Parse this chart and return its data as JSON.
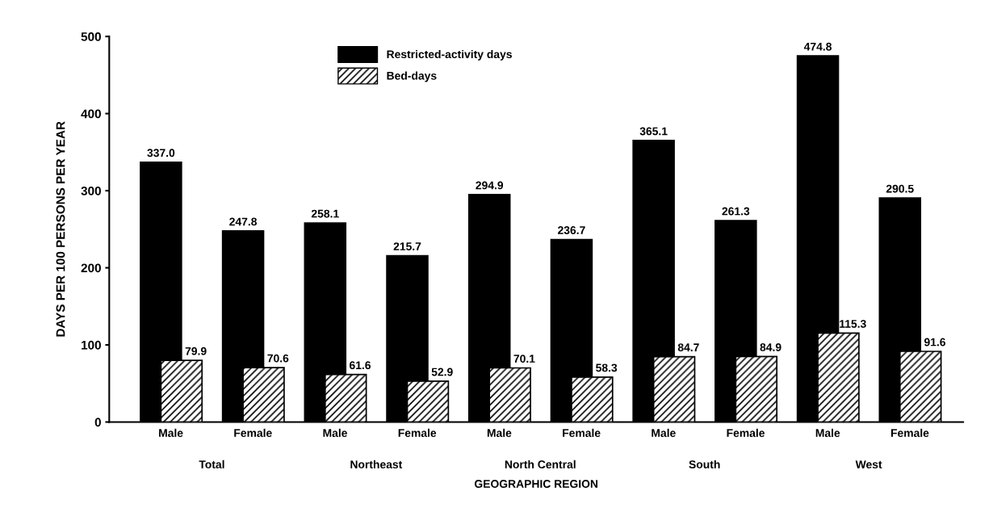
{
  "chart_data": {
    "type": "bar",
    "xlabel": "GEOGRAPHIC REGION",
    "ylabel": "DAYS PER 100 PERSONS PER YEAR",
    "categories": [
      "Male",
      "Female",
      "Male",
      "Female",
      "Male",
      "Female",
      "Male",
      "Female",
      "Male",
      "Female"
    ],
    "annotations": [
      "Total",
      "Northeast",
      "North Central",
      "South",
      "West"
    ],
    "series": [
      {
        "name": "Restricted-activity days",
        "color": "#000000",
        "values": [
          337.0,
          247.8,
          258.1,
          215.7,
          294.9,
          236.7,
          365.1,
          261.3,
          474.8,
          290.5
        ],
        "value_labels": [
          "337.0",
          "247.8",
          "258.1",
          "215.7",
          "294.9",
          "236.7",
          "365.1",
          "261.3",
          "474.8",
          "290.5"
        ]
      },
      {
        "name": "Bed-days",
        "color": "#000000",
        "values": [
          79.9,
          70.6,
          61.6,
          52.9,
          70.1,
          58.3,
          84.7,
          84.9,
          115.3,
          91.6
        ],
        "value_labels": [
          "79.9",
          "70.6",
          "61.6",
          "52.9",
          "70.1",
          "58.3",
          "84.7",
          "84.9",
          "115.3",
          "91.6"
        ]
      }
    ],
    "ylim": [
      0,
      500
    ],
    "yticks": [
      0,
      100,
      200,
      300,
      400,
      500
    ],
    "legend": "top",
    "grid": false
  }
}
